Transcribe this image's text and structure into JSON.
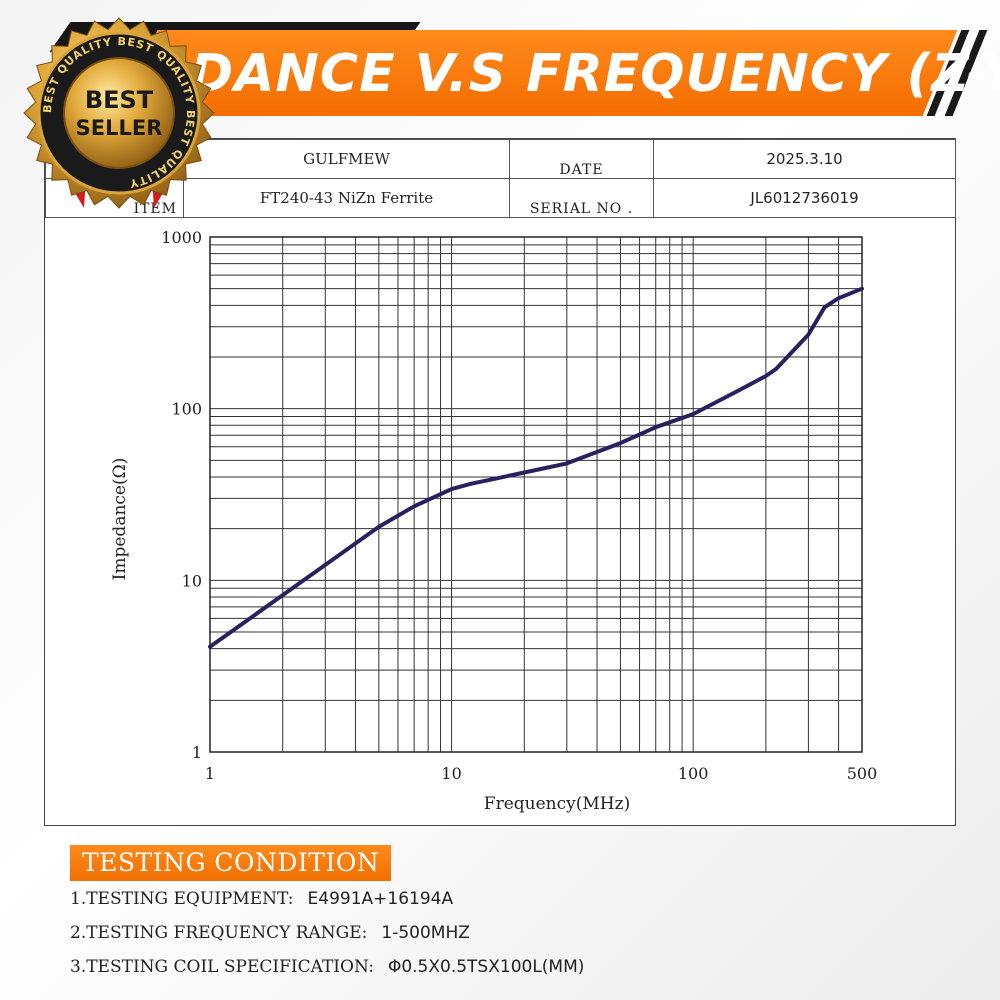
{
  "banner": {
    "title": "DANCE V.S FREQUENCY (Z-Y)"
  },
  "badge": {
    "ring_text": "BEST QUALITY BEST QUALITY BEST QUALITY",
    "line1": "BEST",
    "line2": "SELLER"
  },
  "info": {
    "maker_value": "GULFMEW",
    "date_label": "DATE",
    "date_value": "2025.3.10",
    "item_label": "ITEM",
    "item_value": "FT240-43 NiZn Ferrite",
    "serial_label": "SERIAL NO .",
    "serial_value": "JL6012736019"
  },
  "chart_data": {
    "type": "line",
    "title": "",
    "xlabel": "Frequency(MHz)",
    "ylabel": "Impedance(Ω)",
    "xscale": "log",
    "yscale": "log",
    "xlim": [
      1,
      500
    ],
    "ylim": [
      1,
      1000
    ],
    "x_ticks": [
      1,
      10,
      100,
      500
    ],
    "y_ticks": [
      1,
      10,
      100,
      1000
    ],
    "grid": true,
    "line_color": "#2a2060",
    "series": [
      {
        "x": [
          1,
          2,
          3,
          5,
          7,
          10,
          12,
          15,
          20,
          30,
          50,
          70,
          100,
          150,
          200,
          220,
          300,
          350,
          400,
          500
        ],
        "y": [
          4.1,
          8.2,
          12.3,
          20.5,
          27,
          34,
          36.5,
          39,
          42.5,
          48,
          63,
          78,
          93,
          125,
          155,
          170,
          270,
          390,
          440,
          500
        ]
      }
    ]
  },
  "conditions": {
    "header": "TESTING CONDITION",
    "items": [
      {
        "label": "1.TESTING EQUIPMENT:",
        "value": "E4991A+16194A"
      },
      {
        "label": "2.TESTING FREQUENCY RANGE:",
        "value": "1-500MHZ"
      },
      {
        "label": "3.TESTING COIL SPECIFICATION:",
        "value": "Φ0.5X0.5TSX100L(MM)"
      }
    ]
  }
}
